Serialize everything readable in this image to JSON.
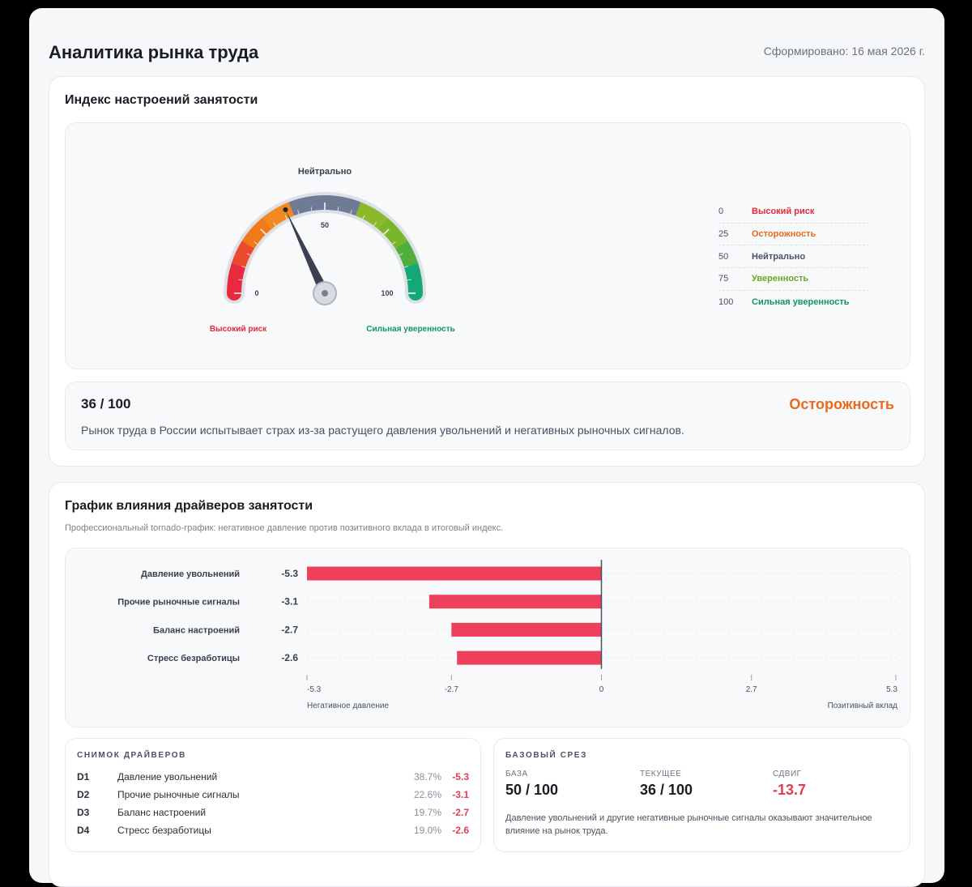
{
  "page": {
    "title": "Аналитика рынка труда",
    "generated": "Сформировано: 16 мая 2026 г."
  },
  "sentiment": {
    "title": "Индекс настроений занятости",
    "gauge": {
      "value": 36,
      "min": 0,
      "max": 100,
      "top_label": "Нейтрально",
      "tick_labels": [
        "0",
        "50",
        "100"
      ],
      "left_label": "Высокий риск",
      "right_label": "Сильная уверенность",
      "colors": {
        "red": "#e8293e",
        "orange": "#f07a1a",
        "gray": "#6f7a94",
        "light_green": "#7ab52a",
        "green": "#16a776"
      }
    },
    "legend": [
      {
        "value": "0",
        "label": "Высокий риск",
        "color": "#e02b3c"
      },
      {
        "value": "25",
        "label": "Осторожность",
        "color": "#ea6a1b"
      },
      {
        "value": "50",
        "label": "Нейтрально",
        "color": "#4b5160"
      },
      {
        "value": "75",
        "label": "Уверенность",
        "color": "#6da51f"
      },
      {
        "value": "100",
        "label": "Сильная уверенность",
        "color": "#129468"
      }
    ],
    "score": "36 / 100",
    "status": "Осторожность",
    "summary": "Рынок труда в России испытывает страх из-за растущего давления увольнений и негативных рыночных сигналов."
  },
  "drivers": {
    "title": "График влияния драйверов занятости",
    "subtitle": "Профессиональный tornado-график: негативное давление против позитивного вклада в итоговый индекс.",
    "chart_data": {
      "type": "bar",
      "orientation": "horizontal-diverging",
      "categories": [
        "Давление увольнений",
        "Прочие рыночные сигналы",
        "Баланс настроений",
        "Стресс безработицы"
      ],
      "values": [
        -5.3,
        -3.1,
        -2.7,
        -2.6
      ],
      "value_labels": [
        "-5.3",
        "-3.1",
        "-2.7",
        "-2.6"
      ],
      "xlim": [
        -5.3,
        5.3
      ],
      "x_ticks": [
        -5.3,
        -2.7,
        0,
        2.7,
        5.3
      ],
      "x_tick_labels": [
        "-5.3",
        "-2.7",
        "0",
        "2.7",
        "5.3"
      ],
      "left_axis_label": "Негативное давление",
      "right_axis_label": "Позитивный вклад",
      "bar_color": "#ee3f5c",
      "grid": true
    },
    "snapshot": {
      "title": "СНИМОК ДРАЙВЕРОВ",
      "rows": [
        {
          "id": "D1",
          "name": "Давление увольнений",
          "pct": "38.7%",
          "value": "-5.3"
        },
        {
          "id": "D2",
          "name": "Прочие рыночные сигналы",
          "pct": "22.6%",
          "value": "-3.1"
        },
        {
          "id": "D3",
          "name": "Баланс настроений",
          "pct": "19.7%",
          "value": "-2.7"
        },
        {
          "id": "D4",
          "name": "Стресс безработицы",
          "pct": "19.0%",
          "value": "-2.6"
        }
      ]
    },
    "baseline": {
      "title": "БАЗОВЫЙ СРЕЗ",
      "base_label": "БАЗА",
      "base_value": "50 / 100",
      "current_label": "ТЕКУЩЕЕ",
      "current_value": "36 / 100",
      "shift_label": "СДВИГ",
      "shift_value": "-13.7",
      "text": "Давление увольнений и другие негативные рыночные сигналы оказывают значительное влияние на рынок труда."
    }
  }
}
